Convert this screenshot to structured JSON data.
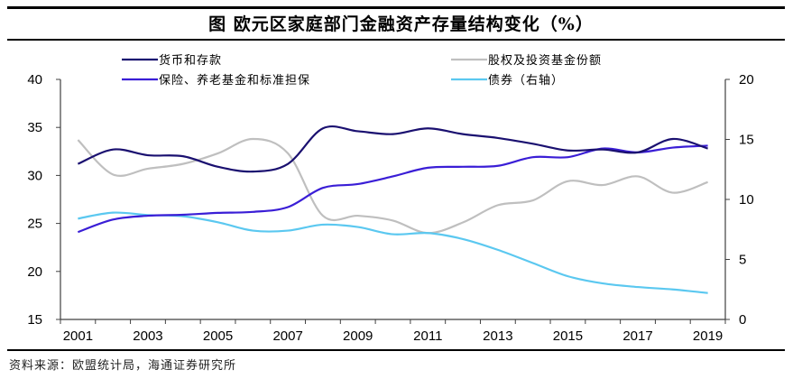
{
  "title": "图  欧元区家庭部门金融资产存量结构变化（%）",
  "source": "资料来源：欧盟统计局，海通证券研究所",
  "chart_data": {
    "type": "line",
    "title": "图  欧元区家庭部门金融资产存量结构变化（%）",
    "xlabel": "",
    "ylabel": "",
    "x": [
      2001,
      2002,
      2003,
      2004,
      2005,
      2006,
      2007,
      2008,
      2009,
      2010,
      2011,
      2012,
      2013,
      2014,
      2015,
      2016,
      2017,
      2018,
      2019
    ],
    "x_tick_labels": [
      "2001",
      "2003",
      "2005",
      "2007",
      "2009",
      "2011",
      "2013",
      "2015",
      "2017",
      "2019"
    ],
    "ylim_left": [
      15,
      40
    ],
    "yticks_left": [
      "15",
      "20",
      "25",
      "30",
      "35",
      "40"
    ],
    "ylim_right": [
      0,
      20
    ],
    "yticks_right": [
      "0",
      "5",
      "10",
      "15",
      "20"
    ],
    "grid": false,
    "legend_position": "top",
    "series": [
      {
        "name": "货币和存款",
        "axis": "left",
        "color": "#1a1070",
        "values": [
          31.2,
          32.7,
          32.1,
          32.0,
          30.9,
          30.4,
          31.2,
          34.9,
          34.6,
          34.3,
          34.9,
          34.3,
          33.9,
          33.3,
          32.6,
          32.7,
          32.4,
          33.8,
          32.8
        ]
      },
      {
        "name": "股权及投资基金份额",
        "axis": "left",
        "color": "#bfbfbf",
        "values": [
          33.7,
          30.1,
          30.7,
          31.2,
          32.3,
          33.8,
          32.3,
          25.8,
          25.8,
          25.3,
          24.0,
          25.1,
          26.9,
          27.4,
          29.4,
          29.0,
          29.9,
          28.2,
          29.3
        ]
      },
      {
        "name": "保险、养老基金和标准担保",
        "axis": "left",
        "color": "#3a1ed6",
        "values": [
          24.1,
          25.4,
          25.8,
          25.9,
          26.1,
          26.2,
          26.7,
          28.7,
          29.1,
          29.9,
          30.8,
          30.9,
          31.0,
          31.9,
          31.9,
          32.8,
          32.4,
          32.9,
          33.1
        ]
      },
      {
        "name": "债券（右轴）",
        "axis": "right",
        "color": "#5bc8f0",
        "values": [
          8.4,
          8.9,
          8.7,
          8.6,
          8.1,
          7.4,
          7.4,
          7.9,
          7.7,
          7.1,
          7.2,
          6.7,
          5.8,
          4.7,
          3.6,
          3.0,
          2.7,
          2.5,
          2.2
        ]
      }
    ]
  }
}
